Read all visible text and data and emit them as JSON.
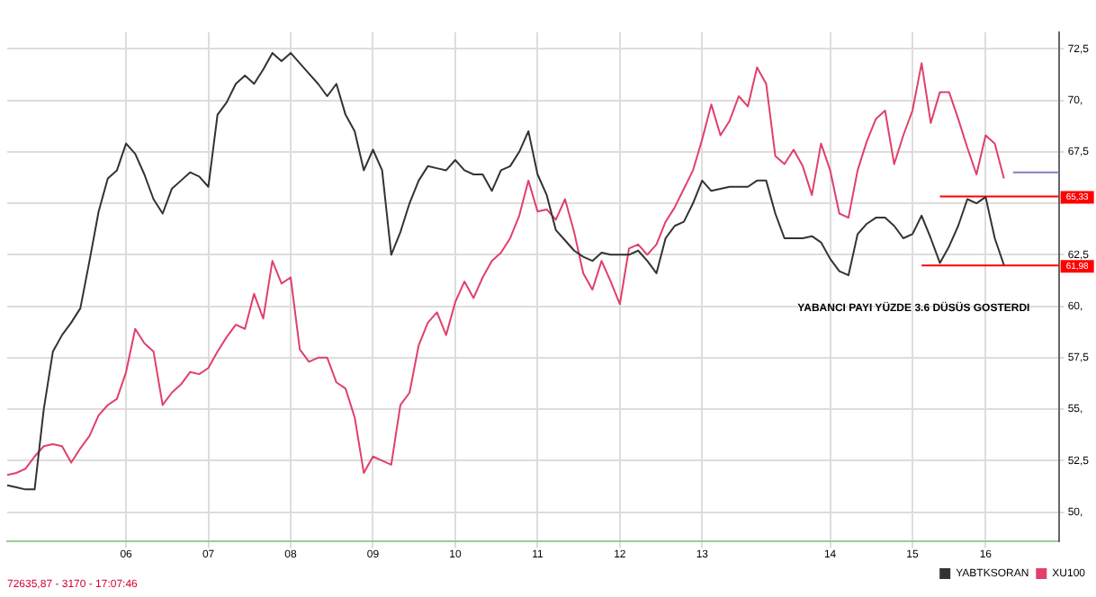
{
  "chart_data": {
    "type": "line",
    "categories": [
      null,
      null,
      null,
      null,
      null,
      null,
      null,
      null,
      null,
      null,
      null,
      null,
      null,
      "06",
      null,
      null,
      null,
      null,
      null,
      null,
      null,
      null,
      "07",
      null,
      null,
      null,
      null,
      null,
      null,
      null,
      null,
      "08",
      null,
      null,
      null,
      null,
      null,
      null,
      null,
      null,
      "09",
      null,
      null,
      null,
      null,
      null,
      null,
      null,
      null,
      "10",
      null,
      null,
      null,
      null,
      null,
      null,
      null,
      null,
      "11",
      null,
      null,
      null,
      null,
      null,
      null,
      null,
      null,
      "12",
      null,
      null,
      null,
      null,
      null,
      null,
      null,
      null,
      "13",
      null,
      null,
      null,
      null,
      null,
      null,
      null,
      null,
      null,
      null,
      null,
      null,
      null,
      "14",
      null,
      null,
      null,
      null,
      null,
      null,
      null,
      null,
      "15",
      null,
      null,
      null,
      null,
      null,
      null,
      null,
      "16",
      null,
      null,
      null,
      null,
      null,
      null,
      null,
      null
    ],
    "series": [
      {
        "name": "YABTKSORAN",
        "color": "#333333",
        "values": [
          51.3,
          51.2,
          51.1,
          51.1,
          55.0,
          57.8,
          58.6,
          59.2,
          59.9,
          62.2,
          64.6,
          66.2,
          66.6,
          67.9,
          67.4,
          66.4,
          65.2,
          64.5,
          65.7,
          66.1,
          66.5,
          66.3,
          65.8,
          69.3,
          69.9,
          70.8,
          71.2,
          70.8,
          71.5,
          72.3,
          71.9,
          72.3,
          71.8,
          71.3,
          70.8,
          70.2,
          70.8,
          69.3,
          68.5,
          66.6,
          67.6,
          66.6,
          62.5,
          63.6,
          65.0,
          66.1,
          66.8,
          66.7,
          66.6,
          67.1,
          66.6,
          66.4,
          66.4,
          65.6,
          66.6,
          66.8,
          67.5,
          68.5,
          66.4,
          65.4,
          63.7,
          63.2,
          62.7,
          62.4,
          62.2,
          62.6,
          62.5,
          62.5,
          62.5,
          62.7,
          62.2,
          61.6,
          63.3,
          63.9,
          64.1,
          65.0,
          66.1,
          65.6,
          65.7,
          65.8,
          65.8,
          65.8,
          66.1,
          66.1,
          64.5,
          63.3,
          63.3,
          63.3,
          63.4,
          63.1,
          62.3,
          61.7,
          61.5,
          63.5,
          64.0,
          64.3,
          64.3,
          63.9,
          63.3,
          63.5,
          64.4,
          63.3,
          62.1,
          62.9,
          63.9,
          65.2,
          65.0,
          65.3,
          63.3,
          62.0,
          null,
          null,
          null,
          null,
          null,
          null
        ]
      },
      {
        "name": "XU100",
        "color": "#e0406a",
        "values": [
          51.8,
          51.9,
          52.1,
          52.7,
          53.2,
          53.3,
          53.2,
          52.4,
          53.1,
          53.7,
          54.7,
          55.2,
          55.5,
          56.8,
          58.9,
          58.2,
          57.8,
          55.2,
          55.8,
          56.2,
          56.8,
          56.7,
          57.0,
          57.8,
          58.5,
          59.1,
          58.9,
          60.6,
          59.4,
          62.2,
          61.1,
          61.4,
          57.9,
          57.3,
          57.5,
          57.5,
          56.3,
          56.0,
          54.6,
          51.9,
          52.7,
          52.5,
          52.3,
          55.2,
          55.8,
          58.1,
          59.2,
          59.7,
          58.6,
          60.2,
          61.2,
          60.4,
          61.4,
          62.2,
          62.6,
          63.3,
          64.4,
          66.1,
          64.6,
          64.7,
          64.2,
          65.2,
          63.6,
          61.6,
          60.8,
          62.2,
          61.2,
          60.1,
          62.8,
          63.0,
          62.5,
          63.0,
          64.1,
          64.8,
          65.7,
          66.6,
          68.1,
          69.8,
          68.3,
          69.0,
          70.2,
          69.7,
          71.6,
          70.8,
          67.3,
          66.9,
          67.6,
          66.8,
          65.4,
          67.9,
          66.6,
          64.5,
          64.3,
          66.6,
          68.0,
          69.1,
          69.5,
          66.9,
          68.3,
          69.5,
          71.8,
          68.9,
          70.4,
          70.4,
          69.1,
          67.7,
          66.4,
          68.3,
          67.9,
          66.2,
          null,
          null,
          null,
          null,
          null,
          null
        ]
      },
      {
        "color": "#8080c0",
        "values": [
          null,
          null,
          null,
          null,
          null,
          null,
          null,
          null,
          null,
          null,
          null,
          null,
          null,
          null,
          null,
          null,
          null,
          null,
          null,
          null,
          null,
          null,
          null,
          null,
          null,
          null,
          null,
          null,
          null,
          null,
          null,
          null,
          null,
          null,
          null,
          null,
          null,
          null,
          null,
          null,
          null,
          null,
          null,
          null,
          null,
          null,
          null,
          null,
          null,
          null,
          null,
          null,
          null,
          null,
          null,
          null,
          null,
          null,
          null,
          null,
          null,
          null,
          null,
          null,
          null,
          null,
          null,
          null,
          null,
          null,
          null,
          null,
          null,
          null,
          null,
          null,
          null,
          null,
          null,
          null,
          null,
          null,
          null,
          null,
          null,
          null,
          null,
          null,
          null,
          null,
          null,
          null,
          null,
          null,
          null,
          null,
          null,
          null,
          null,
          null,
          null,
          null,
          null,
          null,
          null,
          null,
          null,
          null,
          null,
          null,
          66.5,
          66.5,
          66.5,
          66.5,
          66.5,
          66.5
        ]
      },
      {
        "color": "#ff0000",
        "values": [
          null,
          null,
          null,
          null,
          null,
          null,
          null,
          null,
          null,
          null,
          null,
          null,
          null,
          null,
          null,
          null,
          null,
          null,
          null,
          null,
          null,
          null,
          null,
          null,
          null,
          null,
          null,
          null,
          null,
          null,
          null,
          null,
          null,
          null,
          null,
          null,
          null,
          null,
          null,
          null,
          null,
          null,
          null,
          null,
          null,
          null,
          null,
          null,
          null,
          null,
          null,
          null,
          null,
          null,
          null,
          null,
          null,
          null,
          null,
          null,
          null,
          null,
          null,
          null,
          null,
          null,
          null,
          null,
          null,
          null,
          null,
          null,
          null,
          null,
          null,
          null,
          null,
          null,
          null,
          null,
          null,
          null,
          null,
          null,
          null,
          null,
          null,
          null,
          null,
          null,
          null,
          null,
          null,
          null,
          null,
          null,
          null,
          null,
          null,
          null,
          null,
          null,
          65.33,
          65.33,
          65.33,
          65.33,
          65.33,
          65.33,
          65.33,
          65.33,
          65.33,
          65.33,
          65.33,
          65.33,
          65.33,
          65.33
        ]
      },
      {
        "color": "#ff0000",
        "values": [
          null,
          null,
          null,
          null,
          null,
          null,
          null,
          null,
          null,
          null,
          null,
          null,
          null,
          null,
          null,
          null,
          null,
          null,
          null,
          null,
          null,
          null,
          null,
          null,
          null,
          null,
          null,
          null,
          null,
          null,
          null,
          null,
          null,
          null,
          null,
          null,
          null,
          null,
          null,
          null,
          null,
          null,
          null,
          null,
          null,
          null,
          null,
          null,
          null,
          null,
          null,
          null,
          null,
          null,
          null,
          null,
          null,
          null,
          null,
          null,
          null,
          null,
          null,
          null,
          null,
          null,
          null,
          null,
          null,
          null,
          null,
          null,
          null,
          null,
          null,
          null,
          null,
          null,
          null,
          null,
          null,
          null,
          null,
          null,
          null,
          null,
          null,
          null,
          null,
          null,
          null,
          null,
          null,
          null,
          null,
          null,
          null,
          null,
          null,
          null,
          61.98,
          61.98,
          61.98,
          61.98,
          61.98,
          61.98,
          61.98,
          61.98,
          61.98,
          61.98,
          61.98,
          61.98,
          61.98,
          61.98,
          61.98,
          61.98
        ]
      }
    ],
    "ylim": [
      48.6,
      73.3
    ],
    "yticks": [
      {
        "value": 50,
        "label": "50,"
      },
      {
        "value": 52.5,
        "label": "52,5"
      },
      {
        "value": 55,
        "label": "55,"
      },
      {
        "value": 57.5,
        "label": "57,5"
      },
      {
        "value": 60,
        "label": "60,"
      },
      {
        "value": 62.5,
        "label": "62,5"
      },
      {
        "value": 65,
        "label": null
      },
      {
        "value": 67.5,
        "label": "67,5"
      },
      {
        "value": 70,
        "label": "70,"
      },
      {
        "value": 72.5,
        "label": "72,5"
      }
    ],
    "annotations": [
      "YABANCI PAYI YÜZDE 3.6 DÜSÜS GOSTERDI",
      "72635,87 - 3170 - 17:07:46",
      {
        "text": "65,33",
        "y": 65.33
      },
      {
        "text": "61,98",
        "y": 61.98
      }
    ],
    "grid": true,
    "legend": "bottom right",
    "marker": "none",
    "line_style": "solid"
  }
}
